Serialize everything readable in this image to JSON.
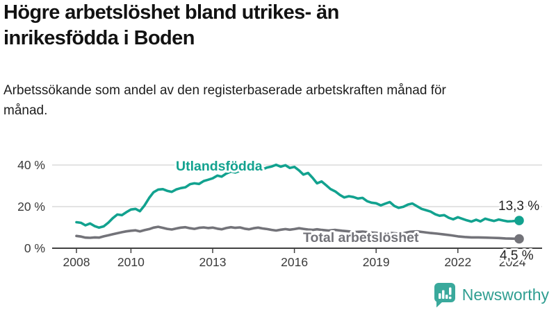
{
  "header": {
    "title": "Högre arbetslöshet bland utrikes- än inrikesfödda i Boden",
    "subtitle": "Arbetssökande som andel av den registerbaserade arbetskraften månad för månad."
  },
  "footer": {
    "brand": "Newsworthy",
    "logo_icon": "bar-chart-speech-bubble-icon"
  },
  "colors": {
    "foreign_born": "#12a28f",
    "total": "#737379",
    "grid": "#dadada",
    "axis": "#404040",
    "tick_text": "#3a3a3a",
    "annotation": "#222222",
    "brand": "#2f9e91",
    "logo_fill": "#3aa99c"
  },
  "chart_data": {
    "type": "line",
    "title": "Högre arbetslöshet bland utrikes- än inrikesfödda i Boden",
    "subtitle": "Arbetssökande som andel av den registerbaserade arbetskraften månad för månad.",
    "xlabel": "",
    "ylabel": "",
    "x_unit": "year",
    "xlim": [
      2007.1,
      2025.1
    ],
    "ylim": [
      0,
      44
    ],
    "grid": "horizontal",
    "legend_position": "inline-labels",
    "y_ticks": [
      {
        "value": 0,
        "label": "0 %"
      },
      {
        "value": 20,
        "label": "20 %"
      },
      {
        "value": 40,
        "label": "40 %"
      }
    ],
    "x_ticks": [
      {
        "value": 2008,
        "label": "2008"
      },
      {
        "value": 2010,
        "label": "2010"
      },
      {
        "value": 2013,
        "label": "2013"
      },
      {
        "value": 2016,
        "label": "2016"
      },
      {
        "value": 2019,
        "label": "2019"
      },
      {
        "value": 2022,
        "label": "2022"
      },
      {
        "value": 2024,
        "label": "2024"
      }
    ],
    "series": [
      {
        "id": "utlandsfodda",
        "name": "Utlandsfödda",
        "color": "#12a28f",
        "end_label": "13,3 %",
        "end_value": 13.3,
        "points": [
          [
            2008.0,
            12.5
          ],
          [
            2008.17,
            12.2
          ],
          [
            2008.33,
            11.0
          ],
          [
            2008.5,
            11.9
          ],
          [
            2008.67,
            10.6
          ],
          [
            2008.83,
            9.9
          ],
          [
            2009.0,
            10.5
          ],
          [
            2009.17,
            12.3
          ],
          [
            2009.33,
            14.4
          ],
          [
            2009.5,
            16.2
          ],
          [
            2009.67,
            15.9
          ],
          [
            2009.83,
            17.3
          ],
          [
            2010.0,
            18.6
          ],
          [
            2010.17,
            18.9
          ],
          [
            2010.33,
            17.8
          ],
          [
            2010.5,
            20.6
          ],
          [
            2010.67,
            24.2
          ],
          [
            2010.83,
            26.9
          ],
          [
            2011.0,
            28.2
          ],
          [
            2011.17,
            28.4
          ],
          [
            2011.33,
            27.6
          ],
          [
            2011.5,
            27.1
          ],
          [
            2011.67,
            28.3
          ],
          [
            2011.83,
            28.9
          ],
          [
            2012.0,
            29.3
          ],
          [
            2012.17,
            30.8
          ],
          [
            2012.33,
            31.2
          ],
          [
            2012.5,
            30.9
          ],
          [
            2012.67,
            32.3
          ],
          [
            2012.83,
            32.9
          ],
          [
            2013.0,
            33.6
          ],
          [
            2013.17,
            34.9
          ],
          [
            2013.33,
            34.4
          ],
          [
            2013.5,
            35.9
          ],
          [
            2013.67,
            36.9
          ],
          [
            2013.83,
            36.4
          ],
          [
            2014.0,
            37.2
          ],
          [
            2014.17,
            37.9
          ],
          [
            2014.33,
            37.1
          ],
          [
            2014.5,
            37.9
          ],
          [
            2014.67,
            38.4
          ],
          [
            2014.83,
            37.9
          ],
          [
            2015.0,
            38.8
          ],
          [
            2015.17,
            39.3
          ],
          [
            2015.33,
            40.1
          ],
          [
            2015.5,
            39.2
          ],
          [
            2015.67,
            39.9
          ],
          [
            2015.83,
            38.6
          ],
          [
            2016.0,
            39.1
          ],
          [
            2016.17,
            37.4
          ],
          [
            2016.33,
            35.4
          ],
          [
            2016.5,
            36.2
          ],
          [
            2016.67,
            33.8
          ],
          [
            2016.83,
            31.2
          ],
          [
            2017.0,
            32.1
          ],
          [
            2017.17,
            30.2
          ],
          [
            2017.33,
            28.4
          ],
          [
            2017.5,
            27.3
          ],
          [
            2017.67,
            25.6
          ],
          [
            2017.83,
            24.4
          ],
          [
            2018.0,
            25.0
          ],
          [
            2018.17,
            24.6
          ],
          [
            2018.33,
            23.9
          ],
          [
            2018.5,
            24.2
          ],
          [
            2018.67,
            22.6
          ],
          [
            2018.83,
            21.9
          ],
          [
            2019.0,
            21.6
          ],
          [
            2019.17,
            20.6
          ],
          [
            2019.33,
            21.4
          ],
          [
            2019.5,
            22.2
          ],
          [
            2019.67,
            20.3
          ],
          [
            2019.83,
            19.4
          ],
          [
            2020.0,
            19.9
          ],
          [
            2020.17,
            21.0
          ],
          [
            2020.33,
            21.5
          ],
          [
            2020.5,
            20.2
          ],
          [
            2020.67,
            18.9
          ],
          [
            2020.83,
            18.3
          ],
          [
            2021.0,
            17.6
          ],
          [
            2021.17,
            16.3
          ],
          [
            2021.33,
            15.6
          ],
          [
            2021.5,
            15.9
          ],
          [
            2021.67,
            14.6
          ],
          [
            2021.83,
            13.9
          ],
          [
            2022.0,
            14.9
          ],
          [
            2022.17,
            14.1
          ],
          [
            2022.33,
            13.4
          ],
          [
            2022.5,
            12.8
          ],
          [
            2022.67,
            13.7
          ],
          [
            2022.83,
            12.9
          ],
          [
            2023.0,
            14.2
          ],
          [
            2023.17,
            13.6
          ],
          [
            2023.33,
            13.1
          ],
          [
            2023.5,
            13.8
          ],
          [
            2023.67,
            13.3
          ],
          [
            2023.83,
            12.9
          ],
          [
            2024.0,
            13.0
          ],
          [
            2024.25,
            13.3
          ]
        ]
      },
      {
        "id": "total-arbetsloshet",
        "name": "Total arbetslöshet",
        "color": "#737379",
        "end_label": "4,5 %",
        "end_value": 4.5,
        "points": [
          [
            2008.0,
            5.9
          ],
          [
            2008.17,
            5.6
          ],
          [
            2008.33,
            5.1
          ],
          [
            2008.5,
            5.0
          ],
          [
            2008.67,
            5.2
          ],
          [
            2008.83,
            5.1
          ],
          [
            2009.0,
            5.7
          ],
          [
            2009.17,
            6.2
          ],
          [
            2009.33,
            6.7
          ],
          [
            2009.5,
            7.2
          ],
          [
            2009.67,
            7.7
          ],
          [
            2009.83,
            8.1
          ],
          [
            2010.0,
            8.4
          ],
          [
            2010.17,
            8.6
          ],
          [
            2010.33,
            8.1
          ],
          [
            2010.5,
            8.7
          ],
          [
            2010.67,
            9.2
          ],
          [
            2010.83,
            9.9
          ],
          [
            2011.0,
            10.3
          ],
          [
            2011.17,
            9.8
          ],
          [
            2011.33,
            9.3
          ],
          [
            2011.5,
            9.0
          ],
          [
            2011.67,
            9.5
          ],
          [
            2011.83,
            9.9
          ],
          [
            2012.0,
            10.1
          ],
          [
            2012.17,
            9.6
          ],
          [
            2012.33,
            9.3
          ],
          [
            2012.5,
            9.8
          ],
          [
            2012.67,
            10.0
          ],
          [
            2012.83,
            9.7
          ],
          [
            2013.0,
            9.9
          ],
          [
            2013.17,
            9.4
          ],
          [
            2013.33,
            9.1
          ],
          [
            2013.5,
            9.7
          ],
          [
            2013.67,
            10.1
          ],
          [
            2013.83,
            9.8
          ],
          [
            2014.0,
            10.0
          ],
          [
            2014.17,
            9.4
          ],
          [
            2014.33,
            9.1
          ],
          [
            2014.5,
            9.6
          ],
          [
            2014.67,
            9.9
          ],
          [
            2014.83,
            9.5
          ],
          [
            2015.0,
            9.2
          ],
          [
            2015.17,
            8.8
          ],
          [
            2015.33,
            8.5
          ],
          [
            2015.5,
            8.9
          ],
          [
            2015.67,
            9.2
          ],
          [
            2015.83,
            8.9
          ],
          [
            2016.0,
            9.2
          ],
          [
            2016.17,
            9.6
          ],
          [
            2016.33,
            9.3
          ],
          [
            2016.5,
            9.0
          ],
          [
            2016.67,
            8.8
          ],
          [
            2016.83,
            9.1
          ],
          [
            2017.0,
            8.8
          ],
          [
            2017.25,
            8.5
          ],
          [
            2017.5,
            8.8
          ],
          [
            2017.75,
            8.4
          ],
          [
            2018.0,
            8.1
          ],
          [
            2018.25,
            7.8
          ],
          [
            2018.5,
            8.0
          ],
          [
            2018.75,
            7.6
          ],
          [
            2019.0,
            7.4
          ],
          [
            2019.25,
            7.2
          ],
          [
            2019.5,
            7.4
          ],
          [
            2019.75,
            7.1
          ],
          [
            2020.0,
            7.2
          ],
          [
            2020.25,
            7.9
          ],
          [
            2020.5,
            8.1
          ],
          [
            2020.75,
            7.7
          ],
          [
            2021.0,
            7.3
          ],
          [
            2021.25,
            7.0
          ],
          [
            2021.5,
            6.6
          ],
          [
            2021.75,
            6.2
          ],
          [
            2022.0,
            5.7
          ],
          [
            2022.25,
            5.4
          ],
          [
            2022.5,
            5.2
          ],
          [
            2022.75,
            5.2
          ],
          [
            2023.0,
            5.1
          ],
          [
            2023.25,
            5.0
          ],
          [
            2023.5,
            4.9
          ],
          [
            2023.75,
            4.7
          ],
          [
            2024.0,
            4.6
          ],
          [
            2024.25,
            4.5
          ]
        ]
      }
    ]
  }
}
